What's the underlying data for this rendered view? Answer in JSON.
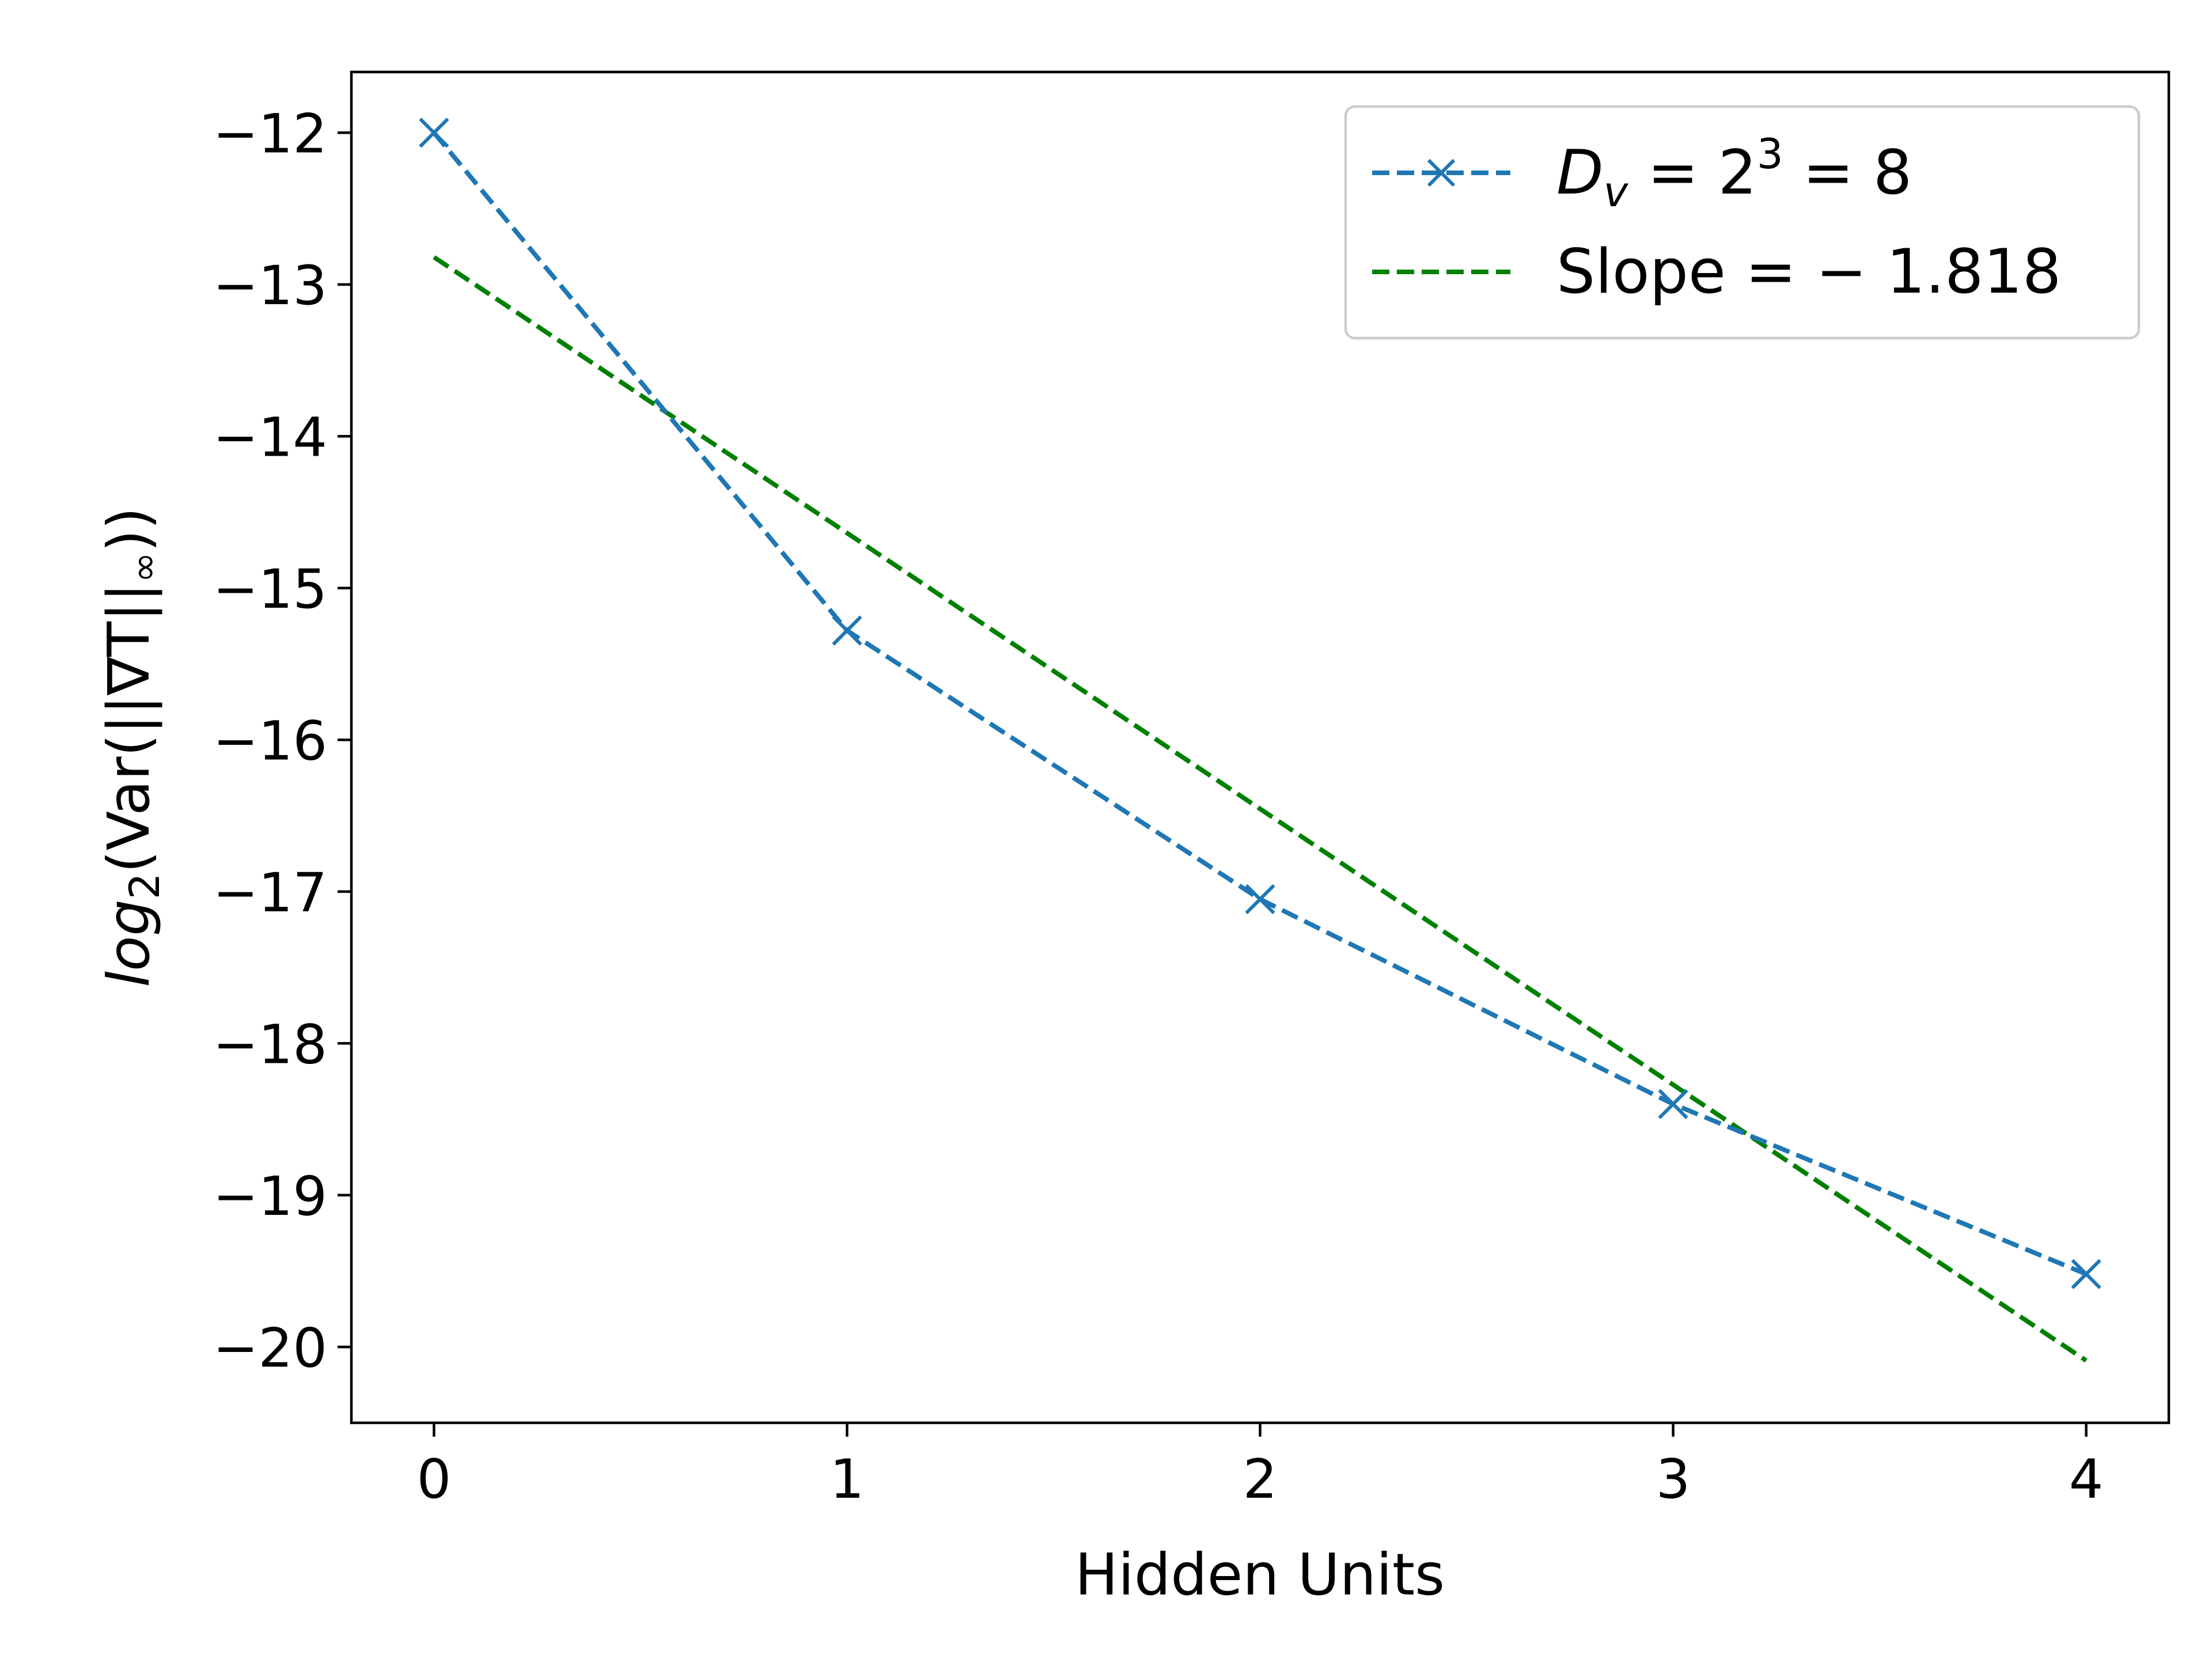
{
  "chart_data": {
    "type": "line",
    "xlabel": "Hidden Units",
    "ylabel_parts": {
      "prefix": "log",
      "sub": "2",
      "middle": "(Var(||∇T||",
      "inf": "∞",
      "suffix": "))"
    },
    "xlim": [
      -0.2,
      4.2
    ],
    "ylim": [
      -20.5,
      -11.6
    ],
    "x_ticks": [
      0,
      1,
      2,
      3,
      4
    ],
    "x_tick_labels": [
      "0",
      "1",
      "2",
      "3",
      "4"
    ],
    "y_ticks": [
      -12,
      -13,
      -14,
      -15,
      -16,
      -17,
      -18,
      -19,
      -20
    ],
    "y_tick_labels": [
      "−12",
      "−13",
      "−14",
      "−15",
      "−16",
      "−17",
      "−18",
      "−19",
      "−20"
    ],
    "grid": false,
    "legend_position": "top-right",
    "series": [
      {
        "name": "D_v = 2^3 = 8",
        "legend": {
          "D": "D",
          "v": "v",
          "eq1": " = 2",
          "exp": "3",
          "eq2": " = 8"
        },
        "color": "#1f77b4",
        "linestyle": "dashed",
        "marker": "x",
        "x": [
          0,
          1,
          2,
          3,
          4
        ],
        "y": [
          -12.0,
          -15.28,
          -17.05,
          -18.4,
          -19.52
        ]
      },
      {
        "name": "Slope = −1.818",
        "legend_text": "Slope = − 1.818",
        "color": "#008000",
        "linestyle": "dashed",
        "marker": "none",
        "x": [
          0,
          4
        ],
        "y": [
          -12.82,
          -20.09
        ]
      }
    ]
  }
}
